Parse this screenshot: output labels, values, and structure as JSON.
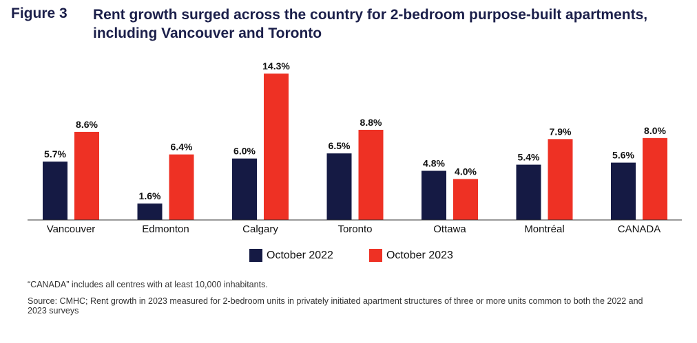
{
  "figure_label": "Figure 3",
  "chart_data": {
    "type": "bar",
    "title": "Rent growth surged across the country for 2-bedroom purpose-built apartments, including Vancouver and Toronto",
    "categories": [
      "Vancouver",
      "Edmonton",
      "Calgary",
      "Toronto",
      "Ottawa",
      "Montréal",
      "CANADA"
    ],
    "series": [
      {
        "name": "October 2022",
        "color": "#151a44",
        "values": [
          5.7,
          1.6,
          6.0,
          6.5,
          4.8,
          5.4,
          5.6
        ],
        "labels": [
          "5.7%",
          "1.6%",
          "6.0%",
          "6.5%",
          "4.8%",
          "5.4%",
          "5.6%"
        ]
      },
      {
        "name": "October 2023",
        "color": "#ee3124",
        "values": [
          8.6,
          6.4,
          14.3,
          8.8,
          4.0,
          7.9,
          8.0
        ],
        "labels": [
          "8.6%",
          "6.4%",
          "14.3%",
          "8.8%",
          "4.0%",
          "7.9%",
          "8.0%"
        ]
      }
    ],
    "xlabel": "",
    "ylabel": "",
    "ylim": [
      0,
      14.3
    ],
    "grid": false,
    "legend_position": "bottom"
  },
  "notes": {
    "inhabitants": "“CANADA” includes all centres with at least 10,000 inhabitants.",
    "source": "Source: CMHC; Rent growth in 2023 measured for 2-bedroom units in privately initiated apartment structures of three or more units common to both the 2022 and 2023 surveys"
  }
}
